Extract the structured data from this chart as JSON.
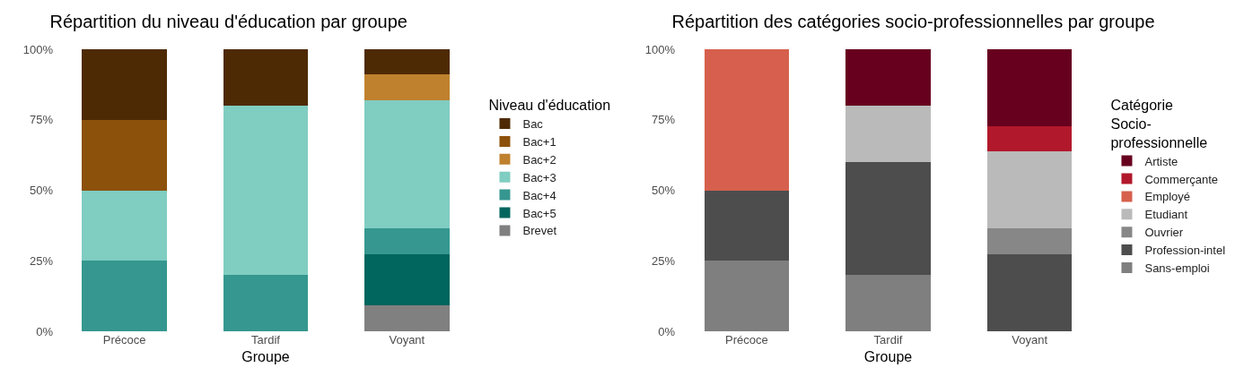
{
  "chart_data": [
    {
      "type": "bar",
      "title": "Répartition du niveau d'éducation par groupe",
      "xlabel": "Groupe",
      "legend_title": "Niveau d'éducation",
      "categories": [
        "Précoce",
        "Tardif",
        "Voyant"
      ],
      "stacked": true,
      "legend": "right",
      "ylim": [
        0,
        100
      ],
      "yticks": [
        {
          "value": 0,
          "label": "0%"
        },
        {
          "value": 25,
          "label": "25%"
        },
        {
          "value": 50,
          "label": "50%"
        },
        {
          "value": 75,
          "label": "75%"
        },
        {
          "value": 100,
          "label": "100%"
        }
      ],
      "series": [
        {
          "name": "Brevet",
          "color": "#808080",
          "values": [
            null,
            null,
            9.1
          ]
        },
        {
          "name": "Bac+5",
          "color": "#01665e",
          "values": [
            null,
            null,
            18.2
          ]
        },
        {
          "name": "Bac+4",
          "color": "#35978f",
          "values": [
            25,
            20,
            9.1
          ]
        },
        {
          "name": "Bac+3",
          "color": "#80cdc1",
          "values": [
            25,
            60,
            45.5
          ]
        },
        {
          "name": "Bac+2",
          "color": "#bf812d",
          "values": [
            null,
            null,
            9.1
          ]
        },
        {
          "name": "Bac+1",
          "color": "#8c510a",
          "values": [
            25,
            null,
            null
          ]
        },
        {
          "name": "Bac",
          "color": "#4e2a04",
          "values": [
            25,
            20,
            9.1
          ]
        }
      ]
    },
    {
      "type": "bar",
      "title": "Répartition des catégories socio-professionnelles par groupe",
      "xlabel": "Groupe",
      "legend_title": "Catégorie Socio-professionnelle",
      "categories": [
        "Précoce",
        "Tardif",
        "Voyant"
      ],
      "stacked": true,
      "legend": "right",
      "ylim": [
        0,
        100
      ],
      "yticks": [
        {
          "value": 0,
          "label": "0%"
        },
        {
          "value": 25,
          "label": "25%"
        },
        {
          "value": 50,
          "label": "50%"
        },
        {
          "value": 75,
          "label": "75%"
        },
        {
          "value": 100,
          "label": "100%"
        }
      ],
      "series": [
        {
          "name": "Sans-emploi",
          "color": "#7f7f7f",
          "values": [
            25,
            20,
            null
          ]
        },
        {
          "name": "Profession-intel",
          "color": "#4d4d4d",
          "values": [
            25,
            40,
            27.3
          ]
        },
        {
          "name": "Ouvrier",
          "color": "#878787",
          "values": [
            null,
            null,
            9.1
          ]
        },
        {
          "name": "Etudiant",
          "color": "#bababa",
          "values": [
            null,
            20,
            27.3
          ]
        },
        {
          "name": "Employé",
          "color": "#d6604d",
          "values": [
            50,
            null,
            null
          ]
        },
        {
          "name": "Commerçante",
          "color": "#b2182b",
          "values": [
            null,
            null,
            9.1
          ]
        },
        {
          "name": "Artiste",
          "color": "#67001f",
          "values": [
            null,
            20,
            27.3
          ]
        }
      ]
    }
  ]
}
